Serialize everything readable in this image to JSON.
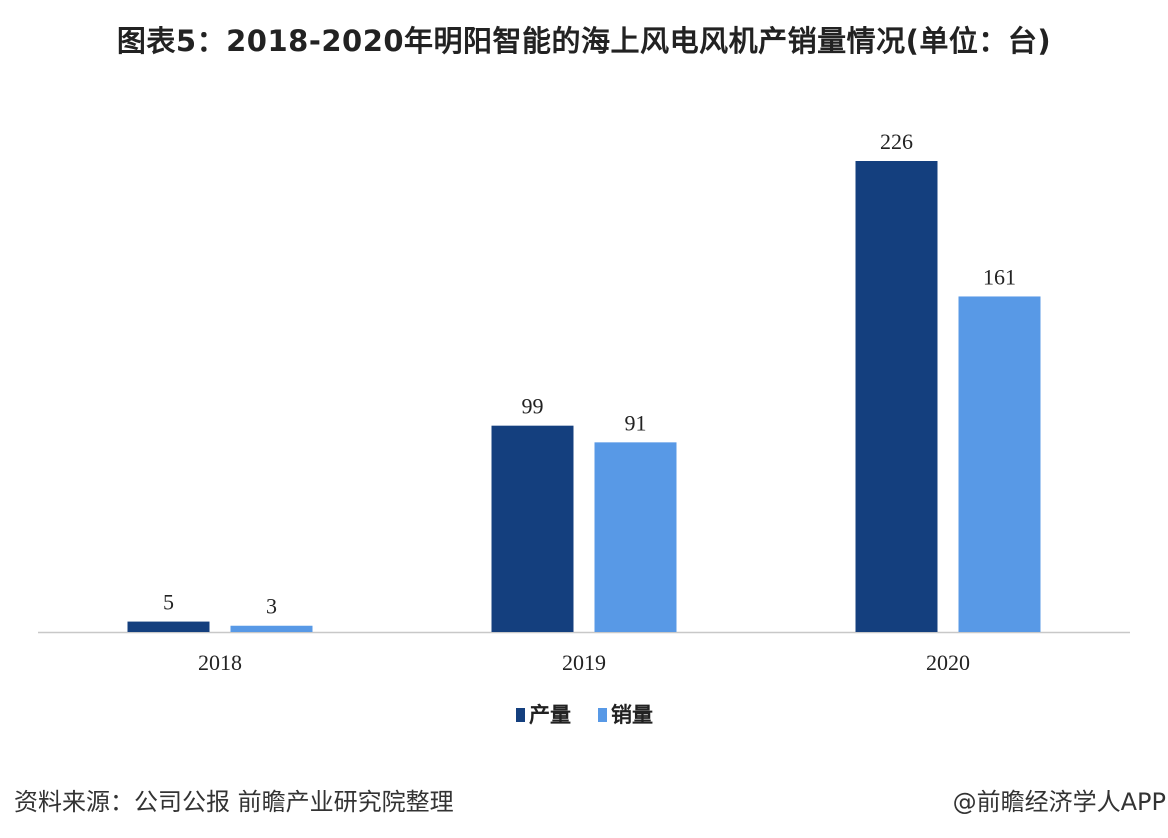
{
  "chart_data": {
    "type": "bar",
    "title": "图表5：2018-2020年明阳智能的海上风电风机产销量情况(单位：台)",
    "categories": [
      "2018",
      "2019",
      "2020"
    ],
    "series": [
      {
        "name": "产量",
        "values": [
          5,
          99,
          226
        ],
        "color": "#143f7e"
      },
      {
        "name": "销量",
        "values": [
          3,
          91,
          161
        ],
        "color": "#5899e6"
      }
    ],
    "ylim": [
      0,
      226
    ],
    "grid": false,
    "legend": "bottom",
    "data_labels": true
  },
  "footer": {
    "source": "资料来源：公司公报 前瞻产业研究院整理",
    "credit": "@前瞻经济学人APP"
  }
}
